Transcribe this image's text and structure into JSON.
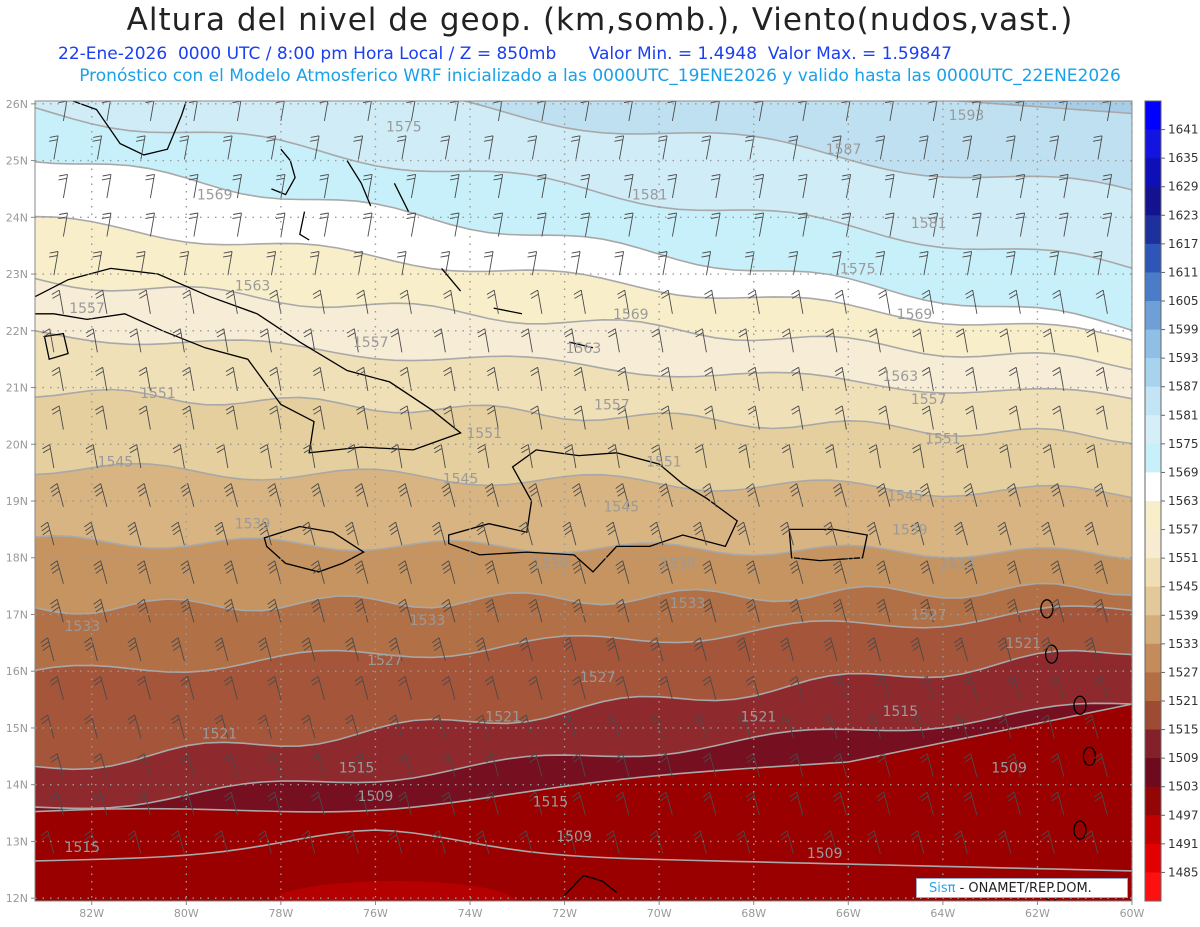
{
  "header": {
    "title": "Altura del nivel de geop. (km,somb.), Viento(nudos,vast.)",
    "line1": "22-Ene-2026  0000 UTC / 8:00 pm Hora Local / Z = 850mb      Valor Min. = 1.4948  Valor Max. = 1.59847",
    "line2": "Pronóstico con el Modelo Atmosferico WRF inicializado a las 0000UTC_19ENE2026 y valido hasta las  0000UTC_22ENE2026"
  },
  "map": {
    "lat_labels": [
      "26N",
      "25N",
      "24N",
      "23N",
      "22N",
      "21N",
      "20N",
      "19N",
      "18N",
      "17N",
      "16N",
      "15N",
      "14N",
      "13N",
      "12N"
    ],
    "lon_labels": [
      "82W",
      "80W",
      "78W",
      "76W",
      "74W",
      "72W",
      "70W",
      "68W",
      "66W",
      "64W",
      "62W",
      "60W"
    ],
    "contour_labels": [
      {
        "text": "1593",
        "lat": 25.8,
        "lon": -63.5
      },
      {
        "text": "1587",
        "lat": 25.2,
        "lon": -66.1
      },
      {
        "text": "1581",
        "lat": 24.4,
        "lon": -70.2
      },
      {
        "text": "1581",
        "lat": 23.9,
        "lon": -64.3
      },
      {
        "text": "1575",
        "lat": 25.6,
        "lon": -75.4
      },
      {
        "text": "1575",
        "lat": 23.1,
        "lon": -65.8
      },
      {
        "text": "1569",
        "lat": 24.4,
        "lon": -79.4
      },
      {
        "text": "1569",
        "lat": 22.3,
        "lon": -70.6
      },
      {
        "text": "1569",
        "lat": 22.3,
        "lon": -64.6
      },
      {
        "text": "1563",
        "lat": 22.8,
        "lon": -78.6
      },
      {
        "text": "1563",
        "lat": 21.7,
        "lon": -71.6
      },
      {
        "text": "1563",
        "lat": 21.2,
        "lon": -64.9
      },
      {
        "text": "1557",
        "lat": 22.4,
        "lon": -82.1
      },
      {
        "text": "1557",
        "lat": 21.8,
        "lon": -76.1
      },
      {
        "text": "1557",
        "lat": 20.7,
        "lon": -71.0
      },
      {
        "text": "1557",
        "lat": 20.8,
        "lon": -64.3
      },
      {
        "text": "1551",
        "lat": 20.9,
        "lon": -80.6
      },
      {
        "text": "1551",
        "lat": 20.2,
        "lon": -73.7
      },
      {
        "text": "1551",
        "lat": 19.7,
        "lon": -69.9
      },
      {
        "text": "1551",
        "lat": 20.1,
        "lon": -64.0
      },
      {
        "text": "1545",
        "lat": 19.7,
        "lon": -81.5
      },
      {
        "text": "1545",
        "lat": 19.4,
        "lon": -74.2
      },
      {
        "text": "1545",
        "lat": 18.9,
        "lon": -70.8
      },
      {
        "text": "1545",
        "lat": 19.1,
        "lon": -64.8
      },
      {
        "text": "1539",
        "lat": 18.6,
        "lon": -78.6
      },
      {
        "text": "1539",
        "lat": 17.9,
        "lon": -72.3
      },
      {
        "text": "1539",
        "lat": 17.9,
        "lon": -69.6
      },
      {
        "text": "1539",
        "lat": 18.5,
        "lon": -64.7
      },
      {
        "text": "1533",
        "lat": 16.8,
        "lon": -82.2
      },
      {
        "text": "1533",
        "lat": 17.2,
        "lon": -69.4
      },
      {
        "text": "1533",
        "lat": 17.9,
        "lon": -63.7
      },
      {
        "text": "1533",
        "lat": 16.9,
        "lon": -74.9
      },
      {
        "text": "1527",
        "lat": 16.2,
        "lon": -75.8
      },
      {
        "text": "1527",
        "lat": 15.9,
        "lon": -71.3
      },
      {
        "text": "1527",
        "lat": 17.0,
        "lon": -64.3
      },
      {
        "text": "1521",
        "lat": 14.9,
        "lon": -79.3
      },
      {
        "text": "1521",
        "lat": 15.2,
        "lon": -73.3
      },
      {
        "text": "1521",
        "lat": 15.2,
        "lon": -67.9
      },
      {
        "text": "1521",
        "lat": 16.5,
        "lon": -62.3
      },
      {
        "text": "1515",
        "lat": 14.3,
        "lon": -76.4
      },
      {
        "text": "1515",
        "lat": 13.7,
        "lon": -72.3
      },
      {
        "text": "1515",
        "lat": 15.3,
        "lon": -64.9
      },
      {
        "text": "1515",
        "lat": 12.9,
        "lon": -82.2
      },
      {
        "text": "1509",
        "lat": 13.8,
        "lon": -76.0
      },
      {
        "text": "1509",
        "lat": 13.1,
        "lon": -71.8
      },
      {
        "text": "1509",
        "lat": 12.8,
        "lon": -66.5
      },
      {
        "text": "1509",
        "lat": 14.3,
        "lon": -62.6
      }
    ]
  },
  "colorbar": {
    "levels": [
      "1641",
      "1635",
      "1629",
      "1623",
      "1617",
      "1611",
      "1605",
      "1599",
      "1593",
      "1587",
      "1581",
      "1575",
      "1569",
      "1563",
      "1557",
      "1551",
      "1545",
      "1539",
      "1533",
      "1527",
      "1521",
      "1515",
      "1509",
      "1503",
      "1497",
      "1491",
      "1485"
    ],
    "colors": [
      "#0000ff",
      "#1414e0",
      "#0f0fb8",
      "#131390",
      "#1e2f9e",
      "#2e55b8",
      "#4a7cc8",
      "#6e9fd6",
      "#8fbfe4",
      "#a8d3ec",
      "#c2e4f4",
      "#d6eef8",
      "#c8f0fa",
      "#ffffff",
      "#f8efca",
      "#f7ecd2",
      "#efdeb4",
      "#e3c89a",
      "#d4ad7d",
      "#c38c5a",
      "#b36e44",
      "#9e4b34",
      "#84202a",
      "#6e0a1e",
      "#940606",
      "#c20000",
      "#e30000",
      "#ff1010"
    ]
  },
  "credit": {
    "sis": "Sis",
    "pi": "π",
    "rest": " - ONAMET/REP.DOM."
  }
}
